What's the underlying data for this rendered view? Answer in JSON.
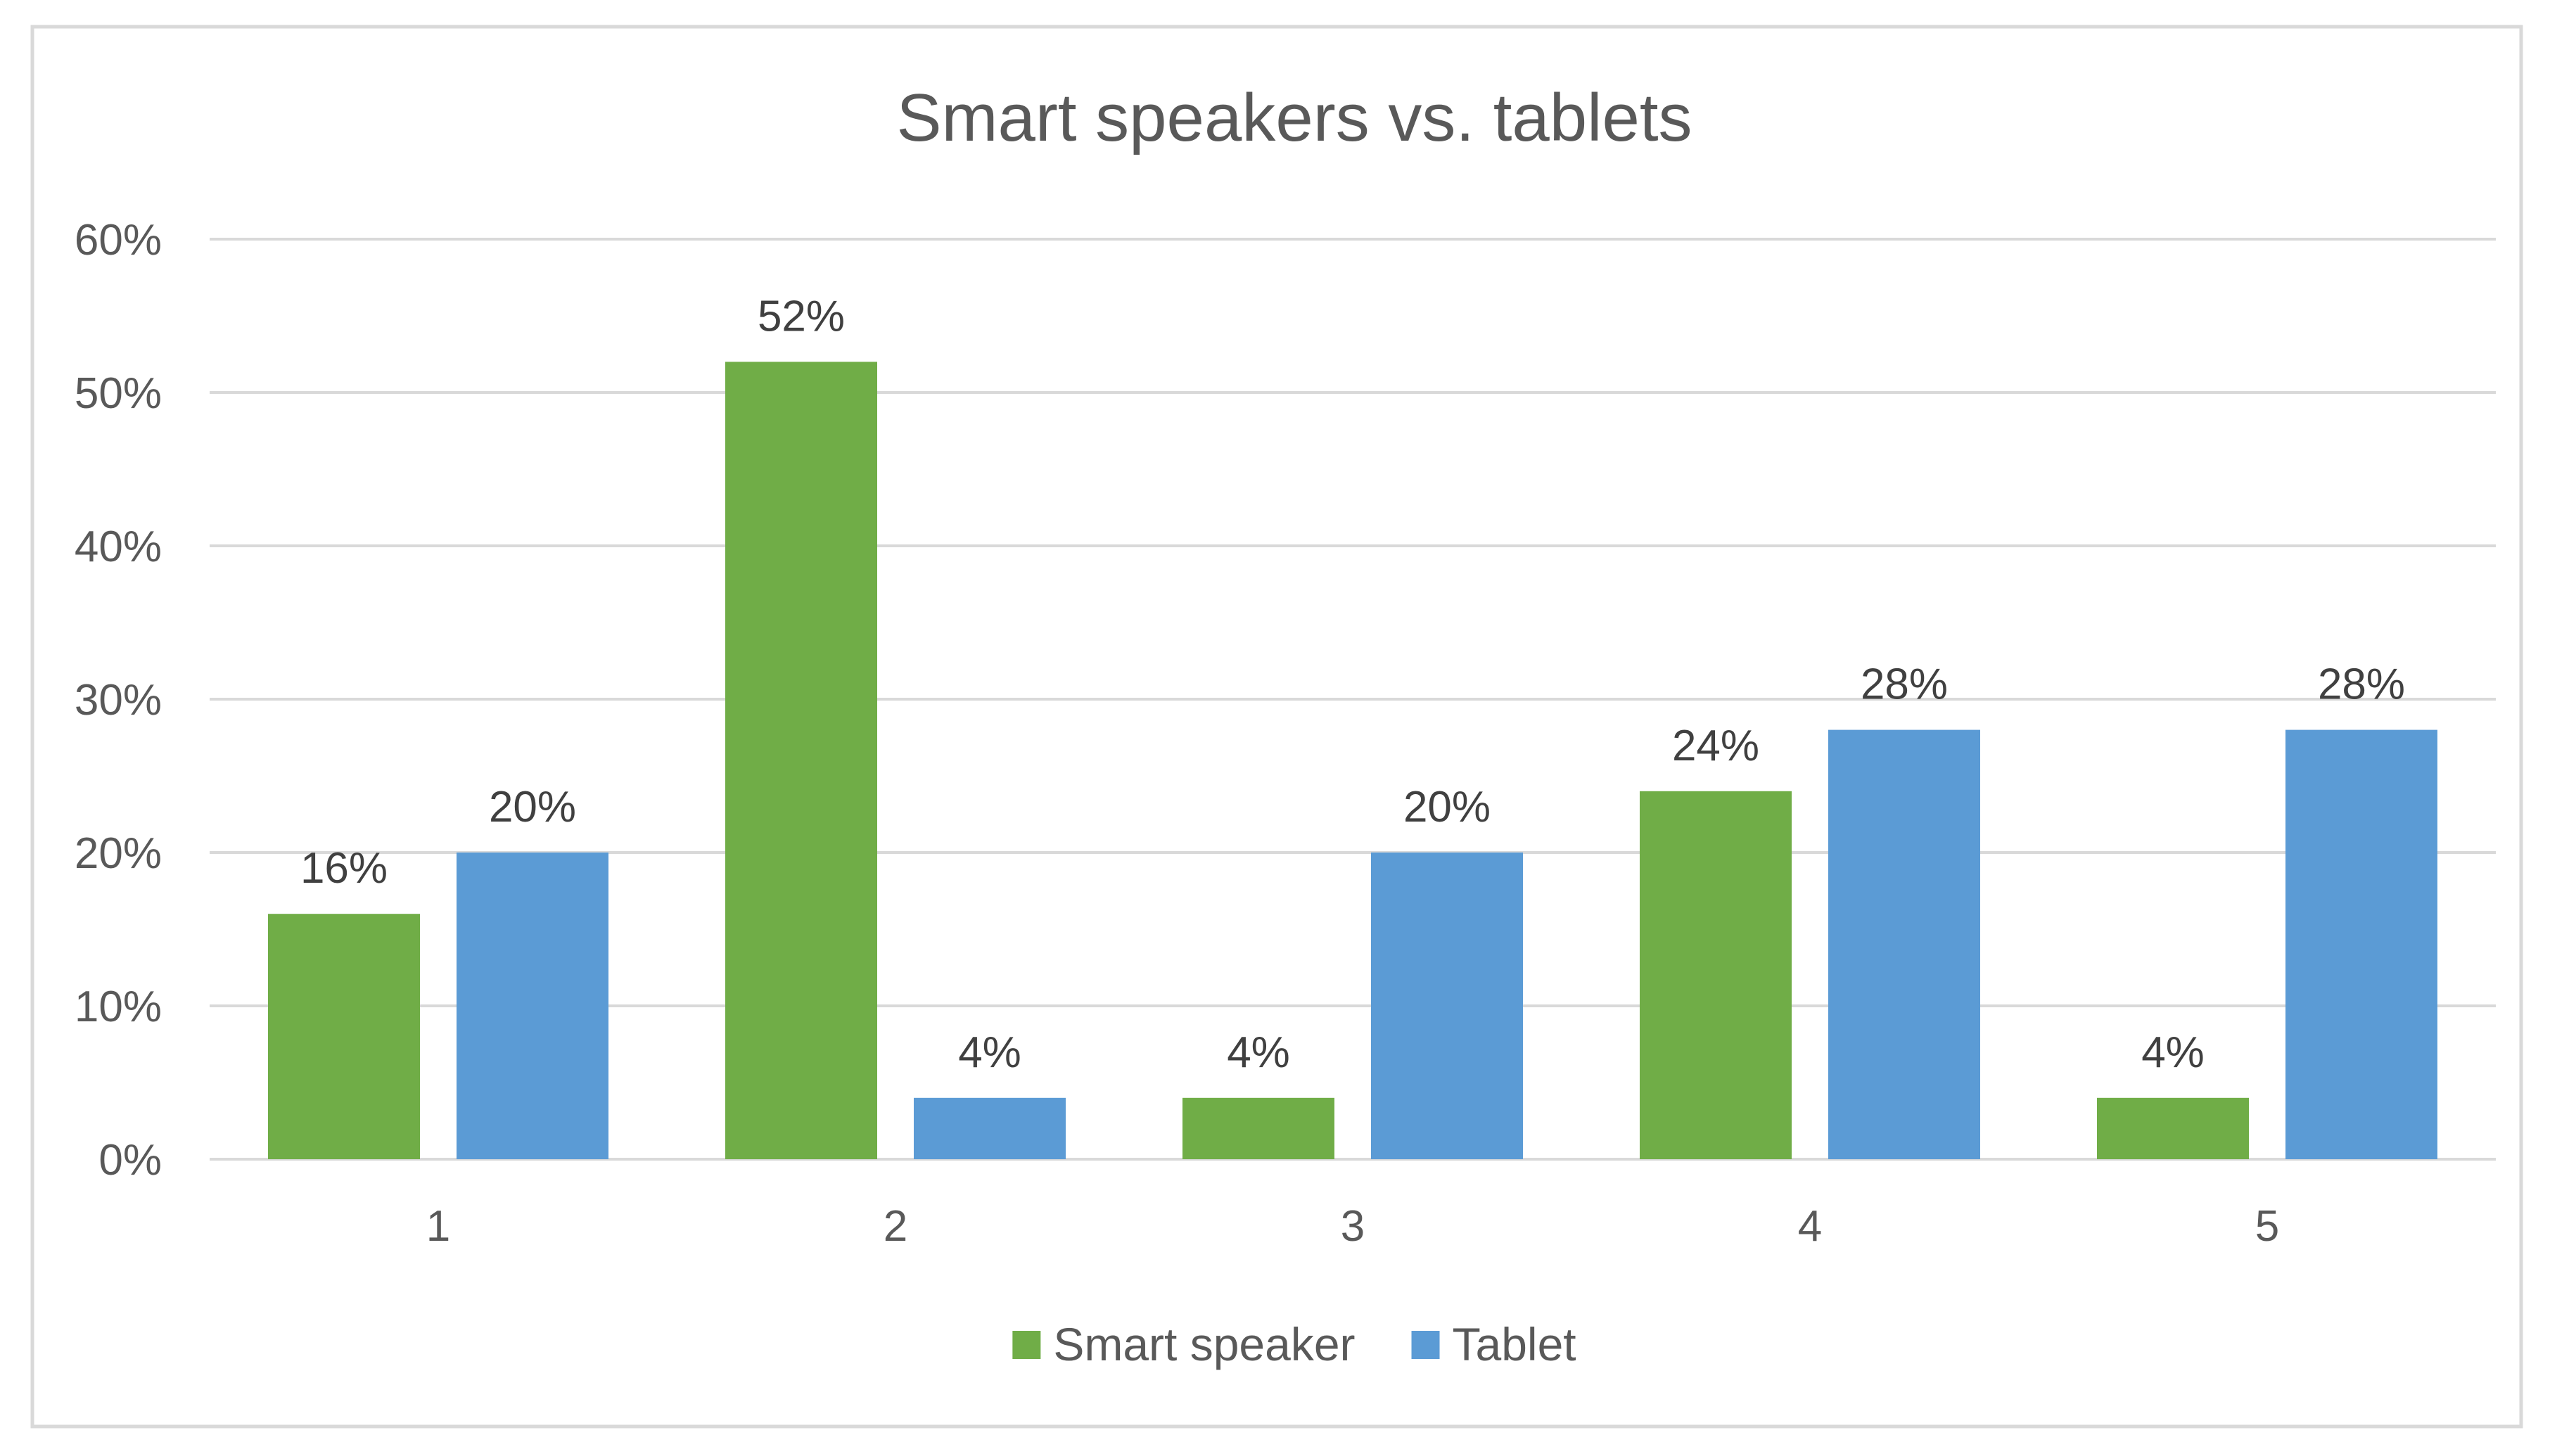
{
  "chart_data": {
    "type": "bar",
    "title": "Smart speakers vs. tablets",
    "xlabel": "",
    "ylabel": "",
    "categories": [
      "1",
      "2",
      "3",
      "4",
      "5"
    ],
    "series": [
      {
        "name": "Smart speaker",
        "color": "#70AD47",
        "values": [
          16,
          52,
          4,
          24,
          4
        ],
        "labels": [
          "16%",
          "52%",
          "4%",
          "24%",
          "4%"
        ]
      },
      {
        "name": "Tablet",
        "color": "#5B9BD5",
        "values": [
          20,
          4,
          20,
          28,
          28
        ],
        "labels": [
          "20%",
          "4%",
          "20%",
          "28%",
          "28%"
        ]
      }
    ],
    "ylim": [
      0,
      60
    ],
    "yticks": [
      0,
      10,
      20,
      30,
      40,
      50,
      60
    ],
    "ytick_labels": [
      "0%",
      "10%",
      "20%",
      "30%",
      "40%",
      "50%",
      "60%"
    ],
    "grid": true,
    "legend_position": "bottom",
    "colors": {
      "border": "#d9d9d9",
      "gridline": "#d9d9d9",
      "text": "#595959"
    }
  }
}
